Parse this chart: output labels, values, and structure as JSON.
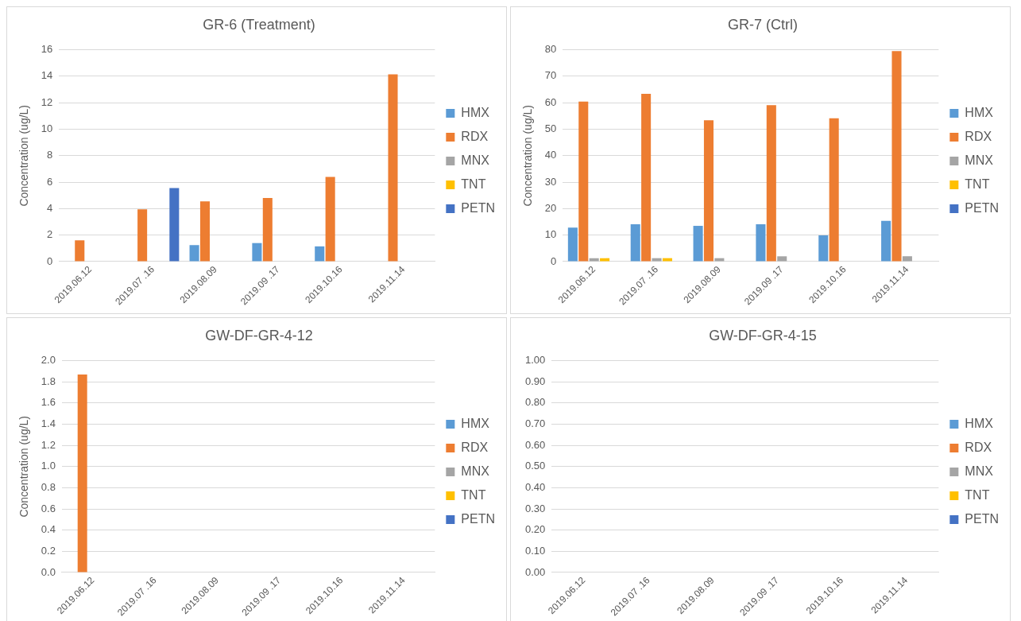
{
  "chart_data": [
    {
      "type": "bar",
      "title": "GR-6 (Treatment)",
      "ylabel": "Concentration (ug/L)",
      "categories": [
        "2019.06.12",
        "2019.07 .16",
        "2019.08.09",
        "2019.09 .17",
        "2019.10.16",
        "2019.11.14"
      ],
      "ylim": [
        0,
        16
      ],
      "yticks": [
        0,
        2,
        4,
        6,
        8,
        10,
        12,
        14,
        16
      ],
      "grid": "y",
      "legend": "right",
      "series": [
        {
          "name": "HMX",
          "color": "#5b9bd5",
          "values": [
            null,
            null,
            1.25,
            1.4,
            1.15,
            null
          ]
        },
        {
          "name": "RDX",
          "color": "#ed7d31",
          "values": [
            1.6,
            3.95,
            4.55,
            4.8,
            6.4,
            14.15
          ]
        },
        {
          "name": "MNX",
          "color": "#a5a5a5",
          "values": [
            null,
            null,
            null,
            null,
            null,
            null
          ]
        },
        {
          "name": "TNT",
          "color": "#ffc000",
          "values": [
            null,
            null,
            null,
            null,
            null,
            null
          ]
        },
        {
          "name": "PETN",
          "color": "#4472c4",
          "values": [
            null,
            5.55,
            null,
            null,
            null,
            null
          ]
        }
      ]
    },
    {
      "type": "bar",
      "title": "GR-7 (Ctrl)",
      "ylabel": "Concentration (ug/L)",
      "categories": [
        "2019.06.12",
        "2019.07 .16",
        "2019.08.09",
        "2019.09 .17",
        "2019.10.16",
        "2019.11.14"
      ],
      "ylim": [
        0,
        80
      ],
      "yticks": [
        0,
        10,
        20,
        30,
        40,
        50,
        60,
        70,
        80
      ],
      "grid": "y",
      "legend": "right",
      "series": [
        {
          "name": "HMX",
          "color": "#5b9bd5",
          "values": [
            12.8,
            14.1,
            13.5,
            14.1,
            9.9,
            15.4
          ]
        },
        {
          "name": "RDX",
          "color": "#ed7d31",
          "values": [
            60.4,
            63.4,
            53.4,
            59.1,
            54.1,
            79.5
          ]
        },
        {
          "name": "MNX",
          "color": "#a5a5a5",
          "values": [
            1.3,
            1.3,
            1.3,
            2,
            null,
            2
          ]
        },
        {
          "name": "TNT",
          "color": "#ffc000",
          "values": [
            1.3,
            1.3,
            null,
            null,
            null,
            null
          ]
        },
        {
          "name": "PETN",
          "color": "#4472c4",
          "values": [
            null,
            null,
            null,
            null,
            null,
            null
          ]
        }
      ]
    },
    {
      "type": "bar",
      "title": "GW-DF-GR-4-12",
      "ylabel": "Concentration (ug/L)",
      "categories": [
        "2019.06.12",
        "2019.07 .16",
        "2019.08.09",
        "2019.09 .17",
        "2019.10.16",
        "2019.11.14"
      ],
      "ylim": [
        0,
        2
      ],
      "yticks": [
        {
          "value": 0,
          "label": "0.0"
        },
        0.2,
        0.4,
        0.6,
        0.8,
        {
          "value": 1,
          "label": "1.0"
        },
        1.2,
        1.4,
        1.6,
        1.8,
        {
          "value": 2,
          "label": "2.0"
        }
      ],
      "grid": "y",
      "legend": "right",
      "series": [
        {
          "name": "HMX",
          "color": "#5b9bd5",
          "values": [
            null,
            null,
            null,
            null,
            null,
            null
          ]
        },
        {
          "name": "RDX",
          "color": "#ed7d31",
          "values": [
            1.87,
            null,
            null,
            null,
            null,
            null
          ]
        },
        {
          "name": "MNX",
          "color": "#a5a5a5",
          "values": [
            null,
            null,
            null,
            null,
            null,
            null
          ]
        },
        {
          "name": "TNT",
          "color": "#ffc000",
          "values": [
            null,
            null,
            null,
            null,
            null,
            null
          ]
        },
        {
          "name": "PETN",
          "color": "#4472c4",
          "values": [
            null,
            null,
            null,
            null,
            null,
            null
          ]
        }
      ]
    },
    {
      "type": "bar",
      "title": "GW-DF-GR-4-15",
      "categories": [
        "2019.06.12",
        "2019.07 .16",
        "2019.08.09",
        "2019.09 .17",
        "2019.10.16",
        "2019.11.14"
      ],
      "ylim": [
        0,
        1
      ],
      "yticks": [
        {
          "value": 0,
          "label": "0.00"
        },
        {
          "value": 0.1,
          "label": "0.10"
        },
        {
          "value": 0.2,
          "label": "0.20"
        },
        {
          "value": 0.3,
          "label": "0.30"
        },
        {
          "value": 0.4,
          "label": "0.40"
        },
        {
          "value": 0.5,
          "label": "0.50"
        },
        {
          "value": 0.6,
          "label": "0.60"
        },
        {
          "value": 0.7,
          "label": "0.70"
        },
        {
          "value": 0.8,
          "label": "0.80"
        },
        {
          "value": 0.9,
          "label": "0.90"
        },
        {
          "value": 1,
          "label": "1.00"
        }
      ],
      "grid": "y",
      "legend": "right",
      "series": [
        {
          "name": "HMX",
          "color": "#5b9bd5",
          "values": [
            null,
            null,
            null,
            null,
            null,
            null
          ]
        },
        {
          "name": "RDX",
          "color": "#ed7d31",
          "values": [
            null,
            null,
            null,
            null,
            null,
            null
          ]
        },
        {
          "name": "MNX",
          "color": "#a5a5a5",
          "values": [
            null,
            null,
            null,
            null,
            null,
            null
          ]
        },
        {
          "name": "TNT",
          "color": "#ffc000",
          "values": [
            null,
            null,
            null,
            null,
            null,
            null
          ]
        },
        {
          "name": "PETN",
          "color": "#4472c4",
          "values": [
            null,
            null,
            null,
            null,
            null,
            null
          ]
        }
      ]
    }
  ]
}
